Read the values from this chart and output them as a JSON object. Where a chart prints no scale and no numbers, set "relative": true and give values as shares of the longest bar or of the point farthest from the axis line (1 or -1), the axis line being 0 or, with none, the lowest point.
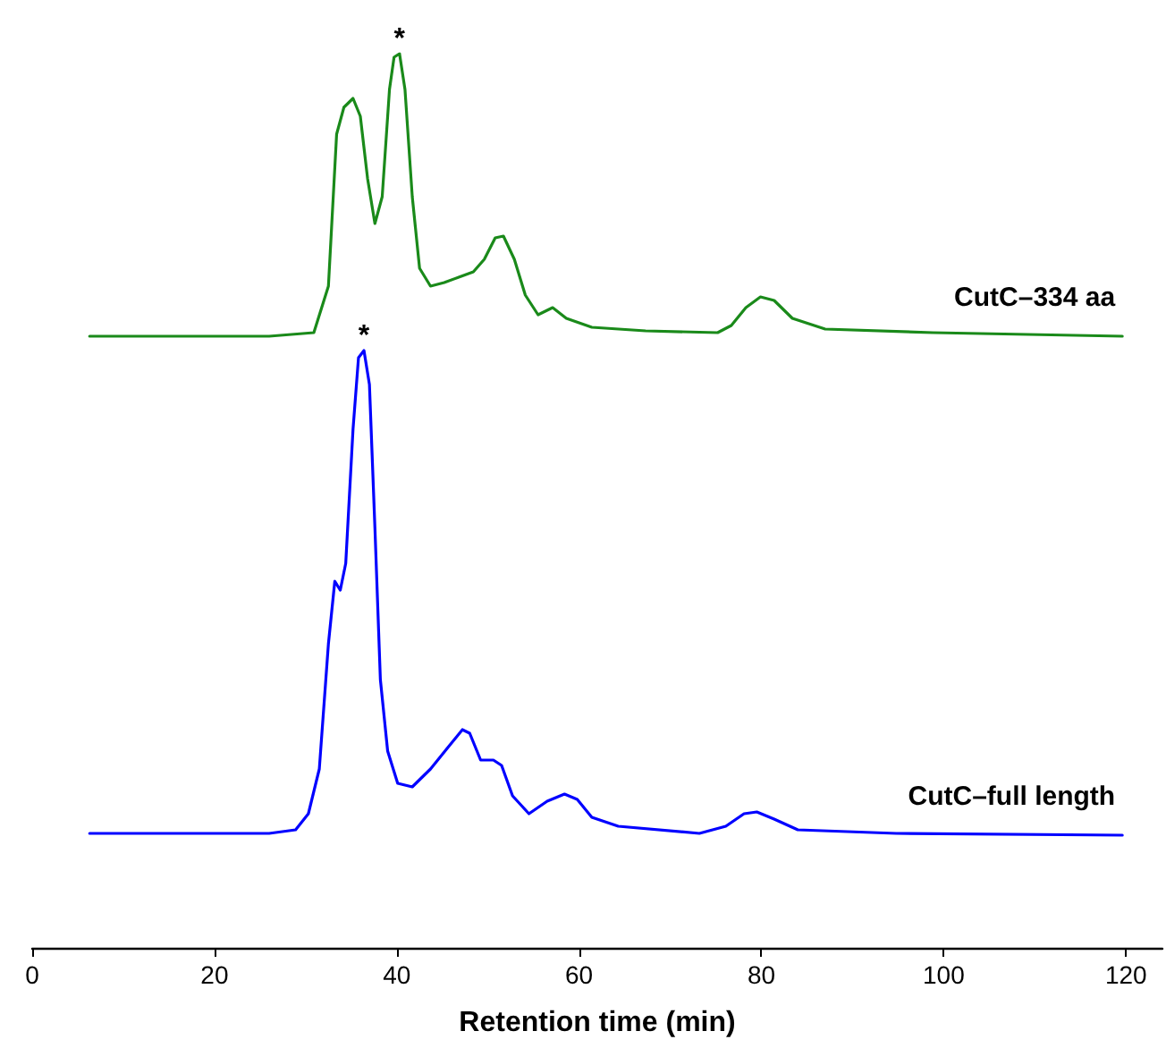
{
  "chart_data": {
    "type": "line",
    "relative": true,
    "xlabel": "Retention time (min)",
    "xlim": [
      0,
      124
    ],
    "xticks": [
      0,
      20,
      40,
      60,
      80,
      100,
      120
    ],
    "grid": false,
    "legend": false,
    "marker": "none",
    "line_style": "solid",
    "tick_labels": "x",
    "annotations": [
      {
        "text": "*",
        "x": 40.3,
        "y": 1.0
      },
      {
        "text": "*",
        "x": 36.4,
        "y": 0.668
      }
    ],
    "series": [
      {
        "name": "CutC–334 aa",
        "color": "#1a8a1a",
        "x": [
          6.3,
          26,
          30.9,
          32.5,
          33.4,
          34.2,
          35.2,
          36,
          36.8,
          37.6,
          38.4,
          39.2,
          39.7,
          40.3,
          40.9,
          41.7,
          42.5,
          43.7,
          45.2,
          46.8,
          48.4,
          49.6,
          50.8,
          51.7,
          52.9,
          54.1,
          55.5,
          57.1,
          58.6,
          61.4,
          67.3,
          75.2,
          76.7,
          78.3,
          79.9,
          81.4,
          83.4,
          87,
          98.8,
          119.6
        ],
        "values": [
          0.684,
          0.684,
          0.688,
          0.74,
          0.91,
          0.94,
          0.95,
          0.93,
          0.86,
          0.81,
          0.84,
          0.96,
          0.996,
          1.0,
          0.96,
          0.84,
          0.76,
          0.74,
          0.744,
          0.75,
          0.756,
          0.77,
          0.794,
          0.796,
          0.77,
          0.73,
          0.708,
          0.716,
          0.704,
          0.694,
          0.69,
          0.688,
          0.696,
          0.716,
          0.728,
          0.724,
          0.704,
          0.692,
          0.688,
          0.684
        ]
      },
      {
        "name": "CutC–full length",
        "color": "#0000ff",
        "x": [
          6.3,
          26,
          28.9,
          30.3,
          31.5,
          32.5,
          33.2,
          33.8,
          34.4,
          35.2,
          35.8,
          36.4,
          37,
          37.6,
          38.2,
          39,
          40.1,
          41.7,
          43.7,
          45.6,
          47.2,
          48,
          49.2,
          50.6,
          51.5,
          52.7,
          54.5,
          56.5,
          58.4,
          59.8,
          61.4,
          64.3,
          73.2,
          76.1,
          78.1,
          79.5,
          81.4,
          84,
          94.8,
          119.6
        ],
        "values": [
          0.128,
          0.128,
          0.132,
          0.15,
          0.2,
          0.34,
          0.41,
          0.4,
          0.43,
          0.58,
          0.66,
          0.668,
          0.63,
          0.47,
          0.3,
          0.22,
          0.184,
          0.18,
          0.2,
          0.224,
          0.244,
          0.24,
          0.21,
          0.21,
          0.204,
          0.17,
          0.15,
          0.164,
          0.172,
          0.166,
          0.146,
          0.136,
          0.128,
          0.136,
          0.15,
          0.152,
          0.144,
          0.132,
          0.128,
          0.126
        ]
      }
    ]
  }
}
